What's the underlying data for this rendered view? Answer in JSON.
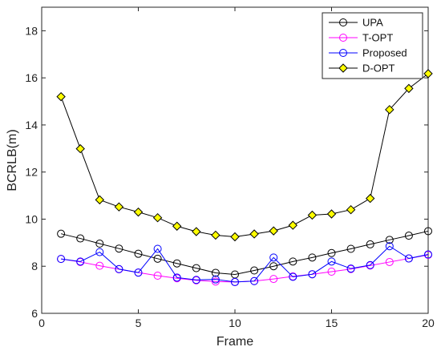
{
  "chart_data": {
    "type": "line",
    "xlabel": "Frame",
    "ylabel": "BCRLB(m)",
    "xlim": [
      0,
      20
    ],
    "ylim": [
      6,
      19
    ],
    "xticks": [
      0,
      5,
      10,
      15,
      20
    ],
    "yticks": [
      6,
      8,
      10,
      12,
      14,
      16,
      18
    ],
    "grid": false,
    "legend_position": "top-right",
    "series": [
      {
        "name": "UPA",
        "color": "#000000",
        "marker": "circle",
        "x": [
          1,
          2,
          3,
          4,
          5,
          6,
          7,
          8,
          9,
          10,
          11,
          12,
          13,
          14,
          15,
          16,
          17,
          18,
          19,
          20
        ],
        "values": [
          9.38,
          9.18,
          8.96,
          8.75,
          8.53,
          8.32,
          8.12,
          7.92,
          7.72,
          7.65,
          7.82,
          8.0,
          8.2,
          8.37,
          8.56,
          8.74,
          8.93,
          9.12,
          9.3,
          9.49
        ]
      },
      {
        "name": "T-OPT",
        "color": "#ff00ff",
        "marker": "circle",
        "x": [
          1,
          2,
          3,
          4,
          5,
          6,
          7,
          8,
          9,
          10,
          11,
          12,
          13,
          14,
          15,
          16,
          17,
          18,
          19,
          20
        ],
        "values": [
          8.31,
          8.18,
          8.02,
          7.87,
          7.73,
          7.6,
          7.49,
          7.4,
          7.35,
          7.33,
          7.37,
          7.46,
          7.57,
          7.66,
          7.77,
          7.88,
          8.03,
          8.18,
          8.33,
          8.48
        ]
      },
      {
        "name": "Proposed",
        "color": "#0000ff",
        "marker": "circle",
        "x": [
          1,
          2,
          3,
          4,
          5,
          6,
          7,
          8,
          9,
          10,
          11,
          12,
          13,
          14,
          15,
          16,
          17,
          18,
          19,
          20
        ],
        "values": [
          8.31,
          8.2,
          8.6,
          7.88,
          7.73,
          8.74,
          7.52,
          7.42,
          7.44,
          7.33,
          7.37,
          8.37,
          7.55,
          7.66,
          8.2,
          7.9,
          8.05,
          8.85,
          8.33,
          8.5
        ]
      },
      {
        "name": "D-OPT",
        "color": "#000000",
        "marker": "diamond",
        "markerFill": "#ffff00",
        "x": [
          1,
          2,
          3,
          4,
          5,
          6,
          7,
          8,
          9,
          10,
          11,
          12,
          13,
          14,
          15,
          16,
          17,
          18,
          19,
          20
        ],
        "values": [
          15.2,
          12.99,
          10.82,
          10.52,
          10.3,
          10.06,
          9.7,
          9.47,
          9.32,
          9.25,
          9.37,
          9.5,
          9.74,
          10.17,
          10.22,
          10.4,
          10.88,
          14.65,
          15.55,
          16.18
        ]
      }
    ]
  }
}
